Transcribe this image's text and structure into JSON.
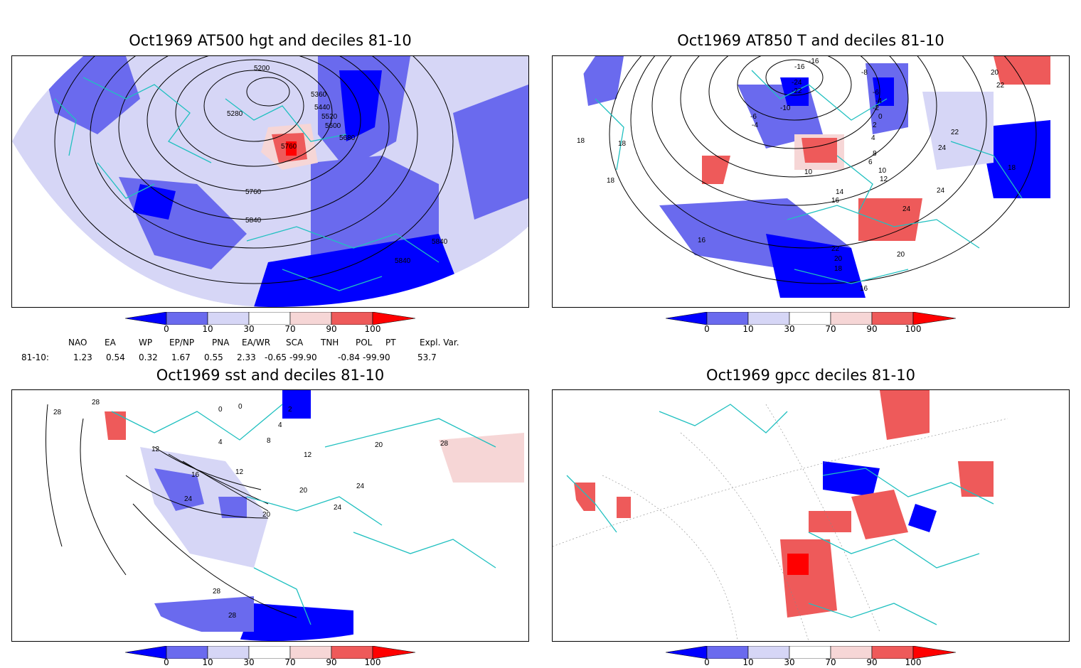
{
  "panels": [
    {
      "title": "Oct1969 AT500 hgt and deciles 81-10",
      "contour_labels": [
        "5200",
        "5280",
        "5360",
        "5440",
        "5520",
        "5600",
        "5680",
        "5760",
        "5760",
        "5840",
        "5840",
        "5840"
      ]
    },
    {
      "title": "Oct1969 AT850 T and deciles 81-10",
      "contour_labels": [
        "-16",
        "-16",
        "-22",
        "-24",
        "-10",
        "-8",
        "-6",
        "-6",
        "-4",
        "-4",
        "-2",
        "0",
        "2",
        "4",
        "6",
        "8",
        "10",
        "10",
        "12",
        "14",
        "16",
        "16",
        "18",
        "18",
        "18",
        "18",
        "20",
        "20",
        "22",
        "22",
        "24",
        "24",
        "24",
        "22",
        "20",
        "18",
        "16"
      ]
    },
    {
      "title": "Oct1969 sst and deciles 81-10",
      "contour_labels": [
        "28",
        "28",
        "0",
        "0",
        "2",
        "4",
        "4",
        "8",
        "12",
        "12",
        "16",
        "12",
        "20",
        "20",
        "24",
        "24",
        "24",
        "28",
        "28",
        "28",
        "20"
      ]
    },
    {
      "title": "Oct1969 gpcc deciles 81-10",
      "contour_labels": []
    }
  ],
  "colorbar": {
    "labels": [
      "0",
      "10",
      "30",
      "70",
      "90",
      "100"
    ],
    "colors": [
      "#0000ff",
      "#6a6aee",
      "#d6d6f6",
      "#ffffff",
      "#f6d6d6",
      "#ee5a5a",
      "#ff0000"
    ]
  },
  "indices": {
    "names": [
      "NAO",
      "EA",
      "WP",
      "EP/NP",
      "PNA",
      "EA/WR",
      "SCA",
      "TNH",
      "POL",
      "PT",
      "Expl. Var."
    ],
    "row_label": "81-10:",
    "values": [
      "1.23",
      "0.54",
      "0.32",
      "1.67",
      "0.55",
      "2.33",
      "-0.65",
      "-99.90",
      "-0.84",
      "-99.90",
      "53.7"
    ]
  }
}
